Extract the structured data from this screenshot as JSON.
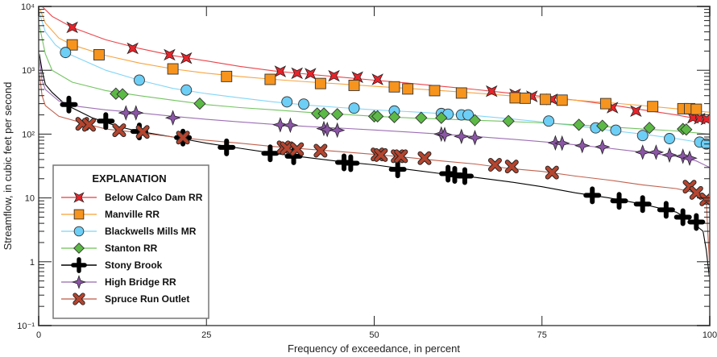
{
  "chart_data": {
    "type": "line",
    "title": "",
    "xlabel": "Frequency of exceedance, in percent",
    "ylabel": "Streamflow, in cubic feet per second",
    "xlim": [
      0,
      100
    ],
    "ylim": [
      0.1,
      10000
    ],
    "yscale": "log",
    "x_ticks": [
      0,
      25,
      50,
      75,
      100
    ],
    "x_tick_labels": [
      "0",
      "25",
      "50",
      "75",
      "100"
    ],
    "y_ticks": [
      0.1,
      1,
      10,
      100,
      1000,
      10000
    ],
    "y_tick_labels": [
      "10⁻¹",
      "1",
      "10",
      "10²",
      "10³",
      "10⁴"
    ],
    "grid": false,
    "legend": {
      "title": "EXPLANATION",
      "position": "lower-left"
    },
    "series": [
      {
        "name": "Below Calco Dam RR",
        "color": "#e8232a",
        "marker": "star4",
        "line": [
          [
            0.5,
            10000
          ],
          [
            2,
            7000
          ],
          [
            5,
            4700
          ],
          [
            10,
            3000
          ],
          [
            15,
            2200
          ],
          [
            20,
            1700
          ],
          [
            25,
            1400
          ],
          [
            30,
            1150
          ],
          [
            35,
            980
          ],
          [
            40,
            870
          ],
          [
            45,
            780
          ],
          [
            50,
            700
          ],
          [
            55,
            630
          ],
          [
            60,
            560
          ],
          [
            65,
            500
          ],
          [
            70,
            440
          ],
          [
            75,
            390
          ],
          [
            80,
            340
          ],
          [
            85,
            290
          ],
          [
            90,
            240
          ],
          [
            95,
            200
          ],
          [
            98,
            175
          ],
          [
            100,
            150
          ]
        ],
        "points": [
          [
            5,
            4700
          ],
          [
            14,
            2200
          ],
          [
            19.5,
            1750
          ],
          [
            22,
            1550
          ],
          [
            36,
            960
          ],
          [
            38.5,
            900
          ],
          [
            40.5,
            880
          ],
          [
            44,
            820
          ],
          [
            47.5,
            780
          ],
          [
            50.5,
            720
          ],
          [
            67.5,
            470
          ],
          [
            71,
            420
          ],
          [
            73.5,
            390
          ],
          [
            76.5,
            350
          ],
          [
            85.5,
            260
          ],
          [
            89,
            230
          ],
          [
            97.5,
            180
          ],
          [
            98.5,
            175
          ],
          [
            99.5,
            170
          ]
        ]
      },
      {
        "name": "Manville RR",
        "color": "#f7941d",
        "marker": "square",
        "line": [
          [
            0.2,
            9000
          ],
          [
            1,
            5500
          ],
          [
            3,
            3200
          ],
          [
            5,
            2500
          ],
          [
            10,
            1700
          ],
          [
            15,
            1300
          ],
          [
            20,
            1050
          ],
          [
            25,
            900
          ],
          [
            30,
            800
          ],
          [
            35,
            720
          ],
          [
            40,
            660
          ],
          [
            45,
            610
          ],
          [
            50,
            560
          ],
          [
            55,
            520
          ],
          [
            60,
            480
          ],
          [
            65,
            440
          ],
          [
            70,
            400
          ],
          [
            75,
            370
          ],
          [
            80,
            340
          ],
          [
            85,
            310
          ],
          [
            90,
            280
          ],
          [
            95,
            250
          ],
          [
            100,
            220
          ]
        ],
        "points": [
          [
            5,
            2500
          ],
          [
            9,
            1750
          ],
          [
            20,
            1050
          ],
          [
            28,
            800
          ],
          [
            34.5,
            720
          ],
          [
            42,
            620
          ],
          [
            47,
            580
          ],
          [
            53,
            550
          ],
          [
            55,
            510
          ],
          [
            59,
            480
          ],
          [
            63,
            440
          ],
          [
            71,
            370
          ],
          [
            72.5,
            365
          ],
          [
            75.5,
            350
          ],
          [
            78,
            340
          ],
          [
            84.5,
            300
          ],
          [
            91.5,
            270
          ],
          [
            96,
            250
          ],
          [
            97,
            250
          ],
          [
            98,
            245
          ]
        ]
      },
      {
        "name": "Blackwells Mills MR",
        "color": "#6dcff6",
        "marker": "circle",
        "line": [
          [
            0.1,
            8000
          ],
          [
            1,
            4000
          ],
          [
            2.5,
            2500
          ],
          [
            4,
            1900
          ],
          [
            10,
            1000
          ],
          [
            15,
            700
          ],
          [
            20,
            520
          ],
          [
            25,
            430
          ],
          [
            30,
            370
          ],
          [
            35,
            320
          ],
          [
            40,
            285
          ],
          [
            45,
            260
          ],
          [
            50,
            240
          ],
          [
            55,
            225
          ],
          [
            60,
            210
          ],
          [
            65,
            195
          ],
          [
            70,
            175
          ],
          [
            75,
            155
          ],
          [
            80,
            135
          ],
          [
            85,
            115
          ],
          [
            90,
            100
          ],
          [
            95,
            85
          ],
          [
            100,
            70
          ]
        ],
        "points": [
          [
            4,
            1900
          ],
          [
            15,
            700
          ],
          [
            22,
            490
          ],
          [
            37,
            320
          ],
          [
            39.5,
            295
          ],
          [
            47,
            255
          ],
          [
            53,
            230
          ],
          [
            60,
            210
          ],
          [
            61,
            205
          ],
          [
            63,
            200
          ],
          [
            64,
            200
          ],
          [
            76,
            160
          ],
          [
            83,
            125
          ],
          [
            86,
            115
          ],
          [
            90,
            95
          ],
          [
            94,
            85
          ],
          [
            98.5,
            75
          ],
          [
            99.5,
            70
          ]
        ]
      },
      {
        "name": "Stanton RR",
        "color": "#5cb946",
        "marker": "diamond",
        "line": [
          [
            0.1,
            5000
          ],
          [
            1,
            1800
          ],
          [
            2,
            1000
          ],
          [
            5,
            650
          ],
          [
            10,
            480
          ],
          [
            15,
            400
          ],
          [
            20,
            340
          ],
          [
            25,
            290
          ],
          [
            30,
            260
          ],
          [
            35,
            240
          ],
          [
            40,
            220
          ],
          [
            45,
            205
          ],
          [
            50,
            190
          ],
          [
            55,
            180
          ],
          [
            60,
            172
          ],
          [
            65,
            165
          ],
          [
            70,
            158
          ],
          [
            75,
            150
          ],
          [
            80,
            140
          ],
          [
            85,
            130
          ],
          [
            90,
            120
          ],
          [
            95,
            112
          ],
          [
            100,
            100
          ]
        ],
        "points": [
          [
            11.5,
            430
          ],
          [
            12.5,
            420
          ],
          [
            24,
            300
          ],
          [
            41.5,
            210
          ],
          [
            42.5,
            210
          ],
          [
            44.5,
            205
          ],
          [
            50,
            190
          ],
          [
            50.5,
            190
          ],
          [
            53,
            185
          ],
          [
            57,
            180
          ],
          [
            60,
            180
          ],
          [
            65,
            165
          ],
          [
            70,
            160
          ],
          [
            80.5,
            140
          ],
          [
            84,
            135
          ],
          [
            91,
            125
          ],
          [
            96,
            120
          ],
          [
            96.5,
            118
          ]
        ]
      },
      {
        "name": "Stony Brook",
        "color": "#000000",
        "marker": "cross",
        "line": [
          [
            0.1,
            1800
          ],
          [
            0.5,
            1000
          ],
          [
            1,
            600
          ],
          [
            2,
            450
          ],
          [
            4,
            290
          ],
          [
            8,
            180
          ],
          [
            12,
            130
          ],
          [
            15,
            110
          ],
          [
            20,
            90
          ],
          [
            25,
            72
          ],
          [
            30,
            60
          ],
          [
            35,
            50
          ],
          [
            40,
            43
          ],
          [
            45,
            37
          ],
          [
            50,
            33
          ],
          [
            55,
            28
          ],
          [
            60,
            24
          ],
          [
            65,
            21
          ],
          [
            70,
            18
          ],
          [
            75,
            15
          ],
          [
            80,
            12
          ],
          [
            85,
            10
          ],
          [
            90,
            8
          ],
          [
            95,
            6
          ],
          [
            97,
            4.5
          ],
          [
            99,
            3
          ],
          [
            99.5,
            1.5
          ],
          [
            100,
            0.5
          ]
        ],
        "points": [
          [
            4.5,
            290
          ],
          [
            10,
            160
          ],
          [
            15,
            110
          ],
          [
            21.5,
            88
          ],
          [
            28,
            62
          ],
          [
            34.5,
            50
          ],
          [
            38,
            45
          ],
          [
            45.5,
            36
          ],
          [
            46.5,
            35
          ],
          [
            53.5,
            28
          ],
          [
            61,
            24
          ],
          [
            62,
            23
          ],
          [
            63.5,
            22
          ],
          [
            82.5,
            11
          ],
          [
            86.5,
            9
          ],
          [
            90,
            8
          ],
          [
            93.5,
            6.5
          ],
          [
            96,
            5
          ],
          [
            98,
            4.2
          ]
        ]
      },
      {
        "name": "High Bridge RR",
        "color": "#8b56a5",
        "marker": "star4",
        "line": [
          [
            0.1,
            1500
          ],
          [
            0.5,
            700
          ],
          [
            1,
            500
          ],
          [
            3,
            330
          ],
          [
            6,
            270
          ],
          [
            10,
            240
          ],
          [
            15,
            215
          ],
          [
            20,
            190
          ],
          [
            25,
            170
          ],
          [
            30,
            155
          ],
          [
            35,
            142
          ],
          [
            40,
            132
          ],
          [
            45,
            124
          ],
          [
            50,
            116
          ],
          [
            55,
            108
          ],
          [
            60,
            100
          ],
          [
            65,
            92
          ],
          [
            70,
            84
          ],
          [
            75,
            76
          ],
          [
            80,
            68
          ],
          [
            85,
            60
          ],
          [
            90,
            52
          ],
          [
            95,
            45
          ],
          [
            98,
            38
          ],
          [
            100,
            30
          ]
        ],
        "points": [
          [
            13,
            215
          ],
          [
            14.5,
            215
          ],
          [
            20,
            180
          ],
          [
            36,
            140
          ],
          [
            37.5,
            138
          ],
          [
            42.5,
            122
          ],
          [
            43,
            118
          ],
          [
            44.5,
            115
          ],
          [
            60,
            100
          ],
          [
            60.5,
            98
          ],
          [
            63,
            92
          ],
          [
            65,
            88
          ],
          [
            77,
            73
          ],
          [
            78,
            72
          ],
          [
            81,
            66
          ],
          [
            84,
            63
          ],
          [
            90,
            52
          ],
          [
            92,
            52
          ],
          [
            94,
            47
          ],
          [
            96,
            45
          ],
          [
            97,
            42
          ]
        ]
      },
      {
        "name": "Spruce Run Outlet",
        "color": "#b5452f",
        "marker": "x",
        "line": [
          [
            0.1,
            900
          ],
          [
            0.5,
            400
          ],
          [
            1,
            280
          ],
          [
            3,
            190
          ],
          [
            7,
            145
          ],
          [
            10,
            120
          ],
          [
            15,
            105
          ],
          [
            20,
            90
          ],
          [
            25,
            80
          ],
          [
            30,
            72
          ],
          [
            35,
            64
          ],
          [
            40,
            58
          ],
          [
            45,
            53
          ],
          [
            50,
            48
          ],
          [
            55,
            43
          ],
          [
            60,
            38
          ],
          [
            65,
            34
          ],
          [
            70,
            29
          ],
          [
            75,
            26
          ],
          [
            80,
            22
          ],
          [
            85,
            19
          ],
          [
            90,
            16
          ],
          [
            95,
            14
          ],
          [
            98,
            12
          ],
          [
            99.5,
            9
          ],
          [
            99.7,
            3
          ],
          [
            100,
            0.8
          ]
        ],
        "points": [
          [
            6.5,
            145
          ],
          [
            7.5,
            140
          ],
          [
            12,
            115
          ],
          [
            15.5,
            108
          ],
          [
            21.5,
            88
          ],
          [
            36.5,
            62
          ],
          [
            37,
            60
          ],
          [
            38.5,
            58
          ],
          [
            42,
            55
          ],
          [
            50.5,
            48
          ],
          [
            51,
            47
          ],
          [
            53.5,
            45
          ],
          [
            54,
            45
          ],
          [
            57.5,
            42
          ],
          [
            68,
            33
          ],
          [
            70.5,
            31
          ],
          [
            76.5,
            25
          ],
          [
            97,
            15
          ],
          [
            98,
            12
          ],
          [
            99.5,
            9.5
          ]
        ]
      }
    ]
  }
}
